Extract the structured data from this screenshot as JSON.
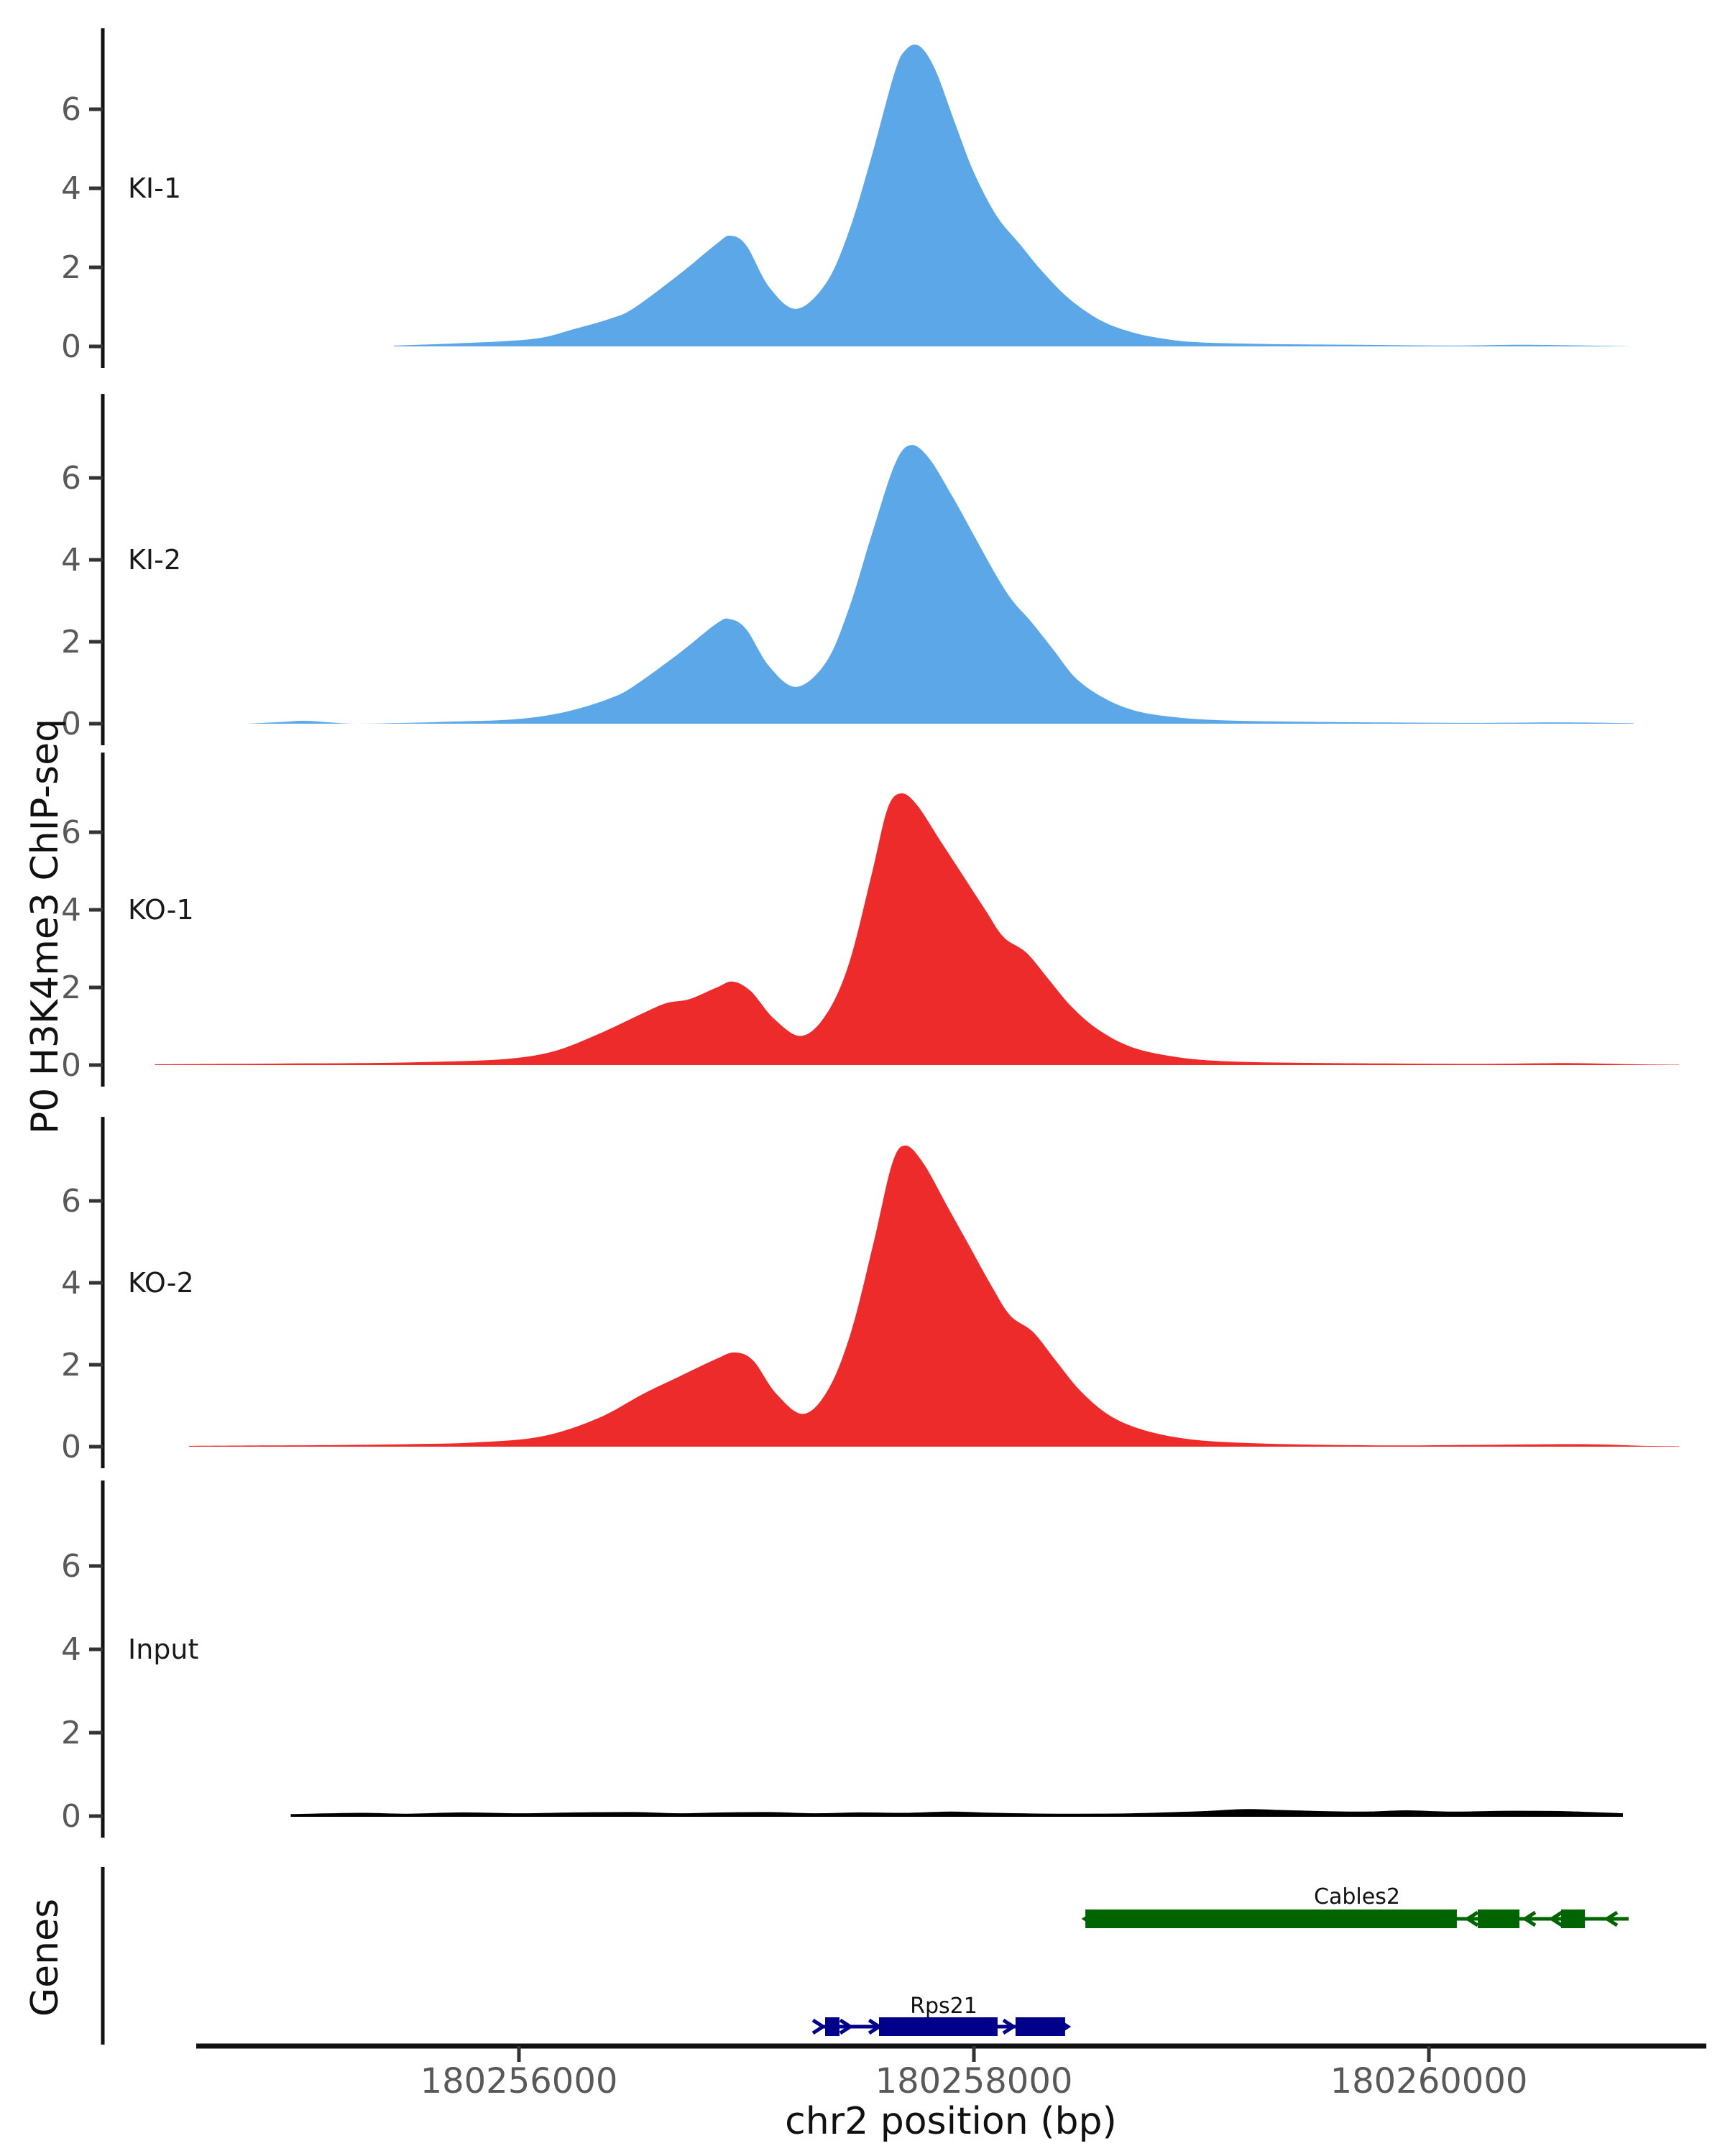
{
  "figure": {
    "y_axis_title": "P0 H3K4me3 ChIP-seq",
    "x_axis_title": "chr2 position (bp)",
    "genes_panel_title": "Genes"
  },
  "chart_data": {
    "type": "area",
    "title": "",
    "xlabel": "chr2 position (bp)",
    "ylabel": "P0 H3K4me3 ChIP-seq",
    "xlim": [
      180254580,
      180261220
    ],
    "track_ylim": [
      0,
      8
    ],
    "y_ticks": [
      0,
      2,
      4,
      6
    ],
    "x_ticks": [
      {
        "bp": 180256000,
        "label": "180256000"
      },
      {
        "bp": 180258000,
        "label": "180258000"
      },
      {
        "bp": 180260000,
        "label": "180260000"
      }
    ],
    "grid": false,
    "legend": "track labels inside panels, left side",
    "tracks": [
      {
        "label": "KI-1",
        "color": "#5BA7E8",
        "points": [
          [
            180255450,
            0.02
          ],
          [
            180255700,
            0.07
          ],
          [
            180255930,
            0.13
          ],
          [
            180256100,
            0.22
          ],
          [
            180256250,
            0.45
          ],
          [
            180256400,
            0.7
          ],
          [
            180256500,
            0.95
          ],
          [
            180256700,
            1.8
          ],
          [
            180256870,
            2.6
          ],
          [
            180256930,
            2.8
          ],
          [
            180257000,
            2.55
          ],
          [
            180257100,
            1.5
          ],
          [
            180257220,
            0.95
          ],
          [
            180257350,
            1.6
          ],
          [
            180257450,
            2.9
          ],
          [
            180257550,
            4.8
          ],
          [
            180257650,
            6.9
          ],
          [
            180257700,
            7.5
          ],
          [
            180257760,
            7.6
          ],
          [
            180257830,
            7.0
          ],
          [
            180257920,
            5.6
          ],
          [
            180258000,
            4.4
          ],
          [
            180258100,
            3.3
          ],
          [
            180258200,
            2.6
          ],
          [
            180258300,
            1.9
          ],
          [
            180258420,
            1.2
          ],
          [
            180258560,
            0.65
          ],
          [
            180258700,
            0.35
          ],
          [
            180258850,
            0.18
          ],
          [
            180259000,
            0.1
          ],
          [
            180259300,
            0.06
          ],
          [
            180259700,
            0.04
          ],
          [
            180260100,
            0.02
          ],
          [
            180260400,
            0.04
          ],
          [
            180260700,
            0.02
          ],
          [
            180260800,
            0.01
          ],
          [
            180260900,
            0.0
          ]
        ]
      },
      {
        "label": "KI-2",
        "color": "#5BA7E8",
        "points": [
          [
            180254800,
            0.0
          ],
          [
            180254950,
            0.04
          ],
          [
            180255060,
            0.07
          ],
          [
            180255170,
            0.03
          ],
          [
            180255280,
            0.0
          ],
          [
            180255500,
            0.02
          ],
          [
            180255700,
            0.05
          ],
          [
            180255930,
            0.09
          ],
          [
            180256100,
            0.18
          ],
          [
            180256250,
            0.35
          ],
          [
            180256400,
            0.62
          ],
          [
            180256500,
            0.9
          ],
          [
            180256700,
            1.7
          ],
          [
            180256870,
            2.45
          ],
          [
            180256930,
            2.55
          ],
          [
            180257000,
            2.3
          ],
          [
            180257100,
            1.4
          ],
          [
            180257220,
            0.9
          ],
          [
            180257350,
            1.5
          ],
          [
            180257450,
            2.8
          ],
          [
            180257550,
            4.6
          ],
          [
            180257650,
            6.3
          ],
          [
            180257720,
            6.8
          ],
          [
            180257800,
            6.5
          ],
          [
            180257900,
            5.6
          ],
          [
            180258000,
            4.6
          ],
          [
            180258100,
            3.6
          ],
          [
            180258170,
            3.0
          ],
          [
            180258250,
            2.5
          ],
          [
            180258350,
            1.8
          ],
          [
            180258450,
            1.1
          ],
          [
            180258580,
            0.6
          ],
          [
            180258720,
            0.3
          ],
          [
            180258900,
            0.15
          ],
          [
            180259100,
            0.08
          ],
          [
            180259400,
            0.05
          ],
          [
            180259800,
            0.03
          ],
          [
            180260200,
            0.02
          ],
          [
            180260600,
            0.03
          ],
          [
            180260900,
            0.01
          ]
        ]
      },
      {
        "label": "KO-1",
        "color": "#EE2B2B",
        "points": [
          [
            180254400,
            0.02
          ],
          [
            180254700,
            0.03
          ],
          [
            180255000,
            0.04
          ],
          [
            180255300,
            0.05
          ],
          [
            180255600,
            0.08
          ],
          [
            180255930,
            0.15
          ],
          [
            180256150,
            0.35
          ],
          [
            180256350,
            0.8
          ],
          [
            180256550,
            1.35
          ],
          [
            180256650,
            1.6
          ],
          [
            180256750,
            1.7
          ],
          [
            180256870,
            2.0
          ],
          [
            180256940,
            2.15
          ],
          [
            180257020,
            1.9
          ],
          [
            180257120,
            1.2
          ],
          [
            180257240,
            0.75
          ],
          [
            180257350,
            1.3
          ],
          [
            180257450,
            2.6
          ],
          [
            180257550,
            4.9
          ],
          [
            180257620,
            6.6
          ],
          [
            180257680,
            7.0
          ],
          [
            180257750,
            6.7
          ],
          [
            180257850,
            5.8
          ],
          [
            180257950,
            4.9
          ],
          [
            180258050,
            4.0
          ],
          [
            180258130,
            3.3
          ],
          [
            180258230,
            2.9
          ],
          [
            180258330,
            2.2
          ],
          [
            180258430,
            1.5
          ],
          [
            180258550,
            0.9
          ],
          [
            180258700,
            0.45
          ],
          [
            180258900,
            0.2
          ],
          [
            180259100,
            0.1
          ],
          [
            180259400,
            0.06
          ],
          [
            180259800,
            0.04
          ],
          [
            180260200,
            0.03
          ],
          [
            180260600,
            0.05
          ],
          [
            180260900,
            0.02
          ],
          [
            180261100,
            0.01
          ]
        ]
      },
      {
        "label": "KO-2",
        "color": "#EE2B2B",
        "points": [
          [
            180254550,
            0.02
          ],
          [
            180254900,
            0.03
          ],
          [
            180255200,
            0.04
          ],
          [
            180255500,
            0.06
          ],
          [
            180255800,
            0.1
          ],
          [
            180256100,
            0.25
          ],
          [
            180256350,
            0.7
          ],
          [
            180256550,
            1.3
          ],
          [
            180256700,
            1.7
          ],
          [
            180256870,
            2.15
          ],
          [
            180256950,
            2.3
          ],
          [
            180257030,
            2.1
          ],
          [
            180257130,
            1.3
          ],
          [
            180257250,
            0.8
          ],
          [
            180257360,
            1.4
          ],
          [
            180257460,
            2.8
          ],
          [
            180257560,
            5.0
          ],
          [
            180257640,
            6.9
          ],
          [
            180257700,
            7.35
          ],
          [
            180257780,
            6.9
          ],
          [
            180257880,
            5.9
          ],
          [
            180257980,
            4.9
          ],
          [
            180258080,
            3.9
          ],
          [
            180258160,
            3.2
          ],
          [
            180258260,
            2.8
          ],
          [
            180258360,
            2.1
          ],
          [
            180258470,
            1.35
          ],
          [
            180258600,
            0.75
          ],
          [
            180258750,
            0.4
          ],
          [
            180258950,
            0.18
          ],
          [
            180259200,
            0.09
          ],
          [
            180259500,
            0.05
          ],
          [
            180259900,
            0.03
          ],
          [
            180260300,
            0.05
          ],
          [
            180260700,
            0.06
          ],
          [
            180260950,
            0.02
          ],
          [
            180261100,
            0.01
          ]
        ]
      },
      {
        "label": "Input",
        "color": "#000000",
        "points": [
          [
            180255000,
            0.03
          ],
          [
            180255300,
            0.06
          ],
          [
            180255500,
            0.04
          ],
          [
            180255750,
            0.07
          ],
          [
            180256000,
            0.05
          ],
          [
            180256250,
            0.07
          ],
          [
            180256500,
            0.08
          ],
          [
            180256700,
            0.05
          ],
          [
            180256900,
            0.07
          ],
          [
            180257100,
            0.08
          ],
          [
            180257300,
            0.05
          ],
          [
            180257500,
            0.07
          ],
          [
            180257700,
            0.06
          ],
          [
            180257900,
            0.09
          ],
          [
            180258100,
            0.06
          ],
          [
            180258400,
            0.04
          ],
          [
            180258700,
            0.05
          ],
          [
            180259000,
            0.1
          ],
          [
            180259200,
            0.15
          ],
          [
            180259400,
            0.12
          ],
          [
            180259700,
            0.09
          ],
          [
            180259900,
            0.12
          ],
          [
            180260100,
            0.09
          ],
          [
            180260350,
            0.11
          ],
          [
            180260600,
            0.1
          ],
          [
            180260850,
            0.05
          ]
        ]
      }
    ],
    "genes": [
      {
        "name": "Cables2",
        "color": "#006400",
        "strand": "-",
        "span": [
          180258490,
          180260878
        ],
        "exons": [
          [
            180258490,
            180260123
          ],
          [
            180260215,
            180260398
          ],
          [
            180260581,
            180260686
          ]
        ],
        "arrows": [
          180258500,
          180260183,
          180260436,
          180260553,
          180260796
        ]
      },
      {
        "name": "Rps21",
        "color": "#00008B",
        "strand": "+",
        "span": [
          180257321,
          180258408
        ],
        "exons": [
          [
            180257346,
            180257409
          ],
          [
            180257583,
            180258104
          ],
          [
            180258183,
            180258401
          ]
        ],
        "arrows": [
          180257324,
          180257444,
          180257571,
          180258161,
          180258400
        ]
      }
    ]
  }
}
